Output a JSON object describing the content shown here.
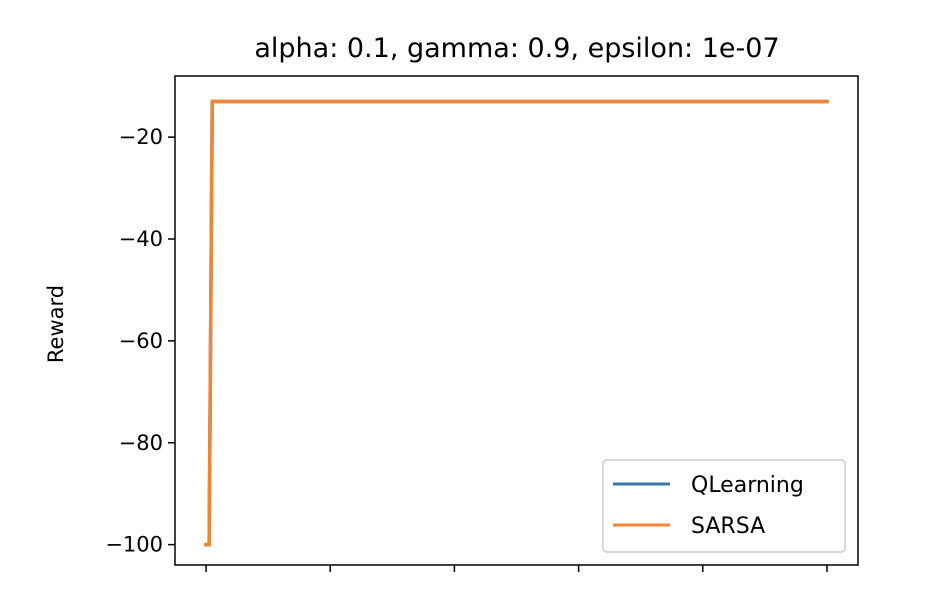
{
  "chart_data": {
    "type": "line",
    "title": "alpha: 0.1, gamma: 0.9, epsilon: 1e-07",
    "xlabel": "",
    "ylabel": "Reward",
    "xlim": [
      -10,
      210
    ],
    "ylim": [
      -104,
      -8
    ],
    "yticks": [
      -20,
      -40,
      -60,
      -80,
      -100
    ],
    "ytick_labels": [
      "−20",
      "−40",
      "−60",
      "−80",
      "−100"
    ],
    "xticks": [
      0,
      40,
      80,
      120,
      160,
      200
    ],
    "xtick_labels": [
      "",
      "",
      "",
      "",
      "",
      ""
    ],
    "grid": false,
    "legend_position": "lower-right",
    "series": [
      {
        "name": "QLearning",
        "color": "#3a76af",
        "x": [
          0,
          1,
          2,
          200
        ],
        "y": [
          -100,
          -100,
          -13,
          -13
        ]
      },
      {
        "name": "SARSA",
        "color": "#ef8636",
        "x": [
          0,
          1,
          2,
          200
        ],
        "y": [
          -100,
          -100,
          -13,
          -13
        ]
      }
    ]
  }
}
